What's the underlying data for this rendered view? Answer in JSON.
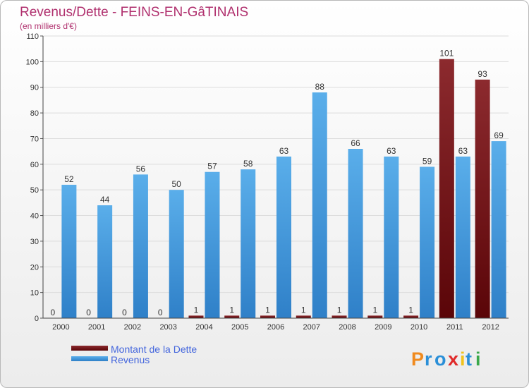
{
  "chart_data": {
    "type": "bar",
    "title": "Revenus/Dette - FEINS-EN-GâTINAIS",
    "subtitle": "(en milliers d'€)",
    "categories": [
      "2000",
      "2001",
      "2002",
      "2003",
      "2004",
      "2005",
      "2006",
      "2007",
      "2008",
      "2009",
      "2010",
      "2011",
      "2012"
    ],
    "series": [
      {
        "name": "Montant de la Dette",
        "color": "#7a1418",
        "values": [
          0,
          0,
          0,
          0,
          1,
          1,
          1,
          1,
          1,
          1,
          1,
          101,
          93
        ]
      },
      {
        "name": "Revenus",
        "color": "#4a9fe0",
        "values": [
          52,
          44,
          56,
          50,
          57,
          58,
          63,
          88,
          66,
          63,
          59,
          63,
          69
        ]
      }
    ],
    "ylim": [
      0,
      110
    ],
    "yticks": [
      0,
      10,
      20,
      30,
      40,
      50,
      60,
      70,
      80,
      90,
      100,
      110
    ],
    "grid": true,
    "legend_position": "bottom-left"
  },
  "logo": {
    "letters": [
      "P",
      "r",
      "o",
      "x",
      "i",
      "t",
      "i"
    ]
  }
}
